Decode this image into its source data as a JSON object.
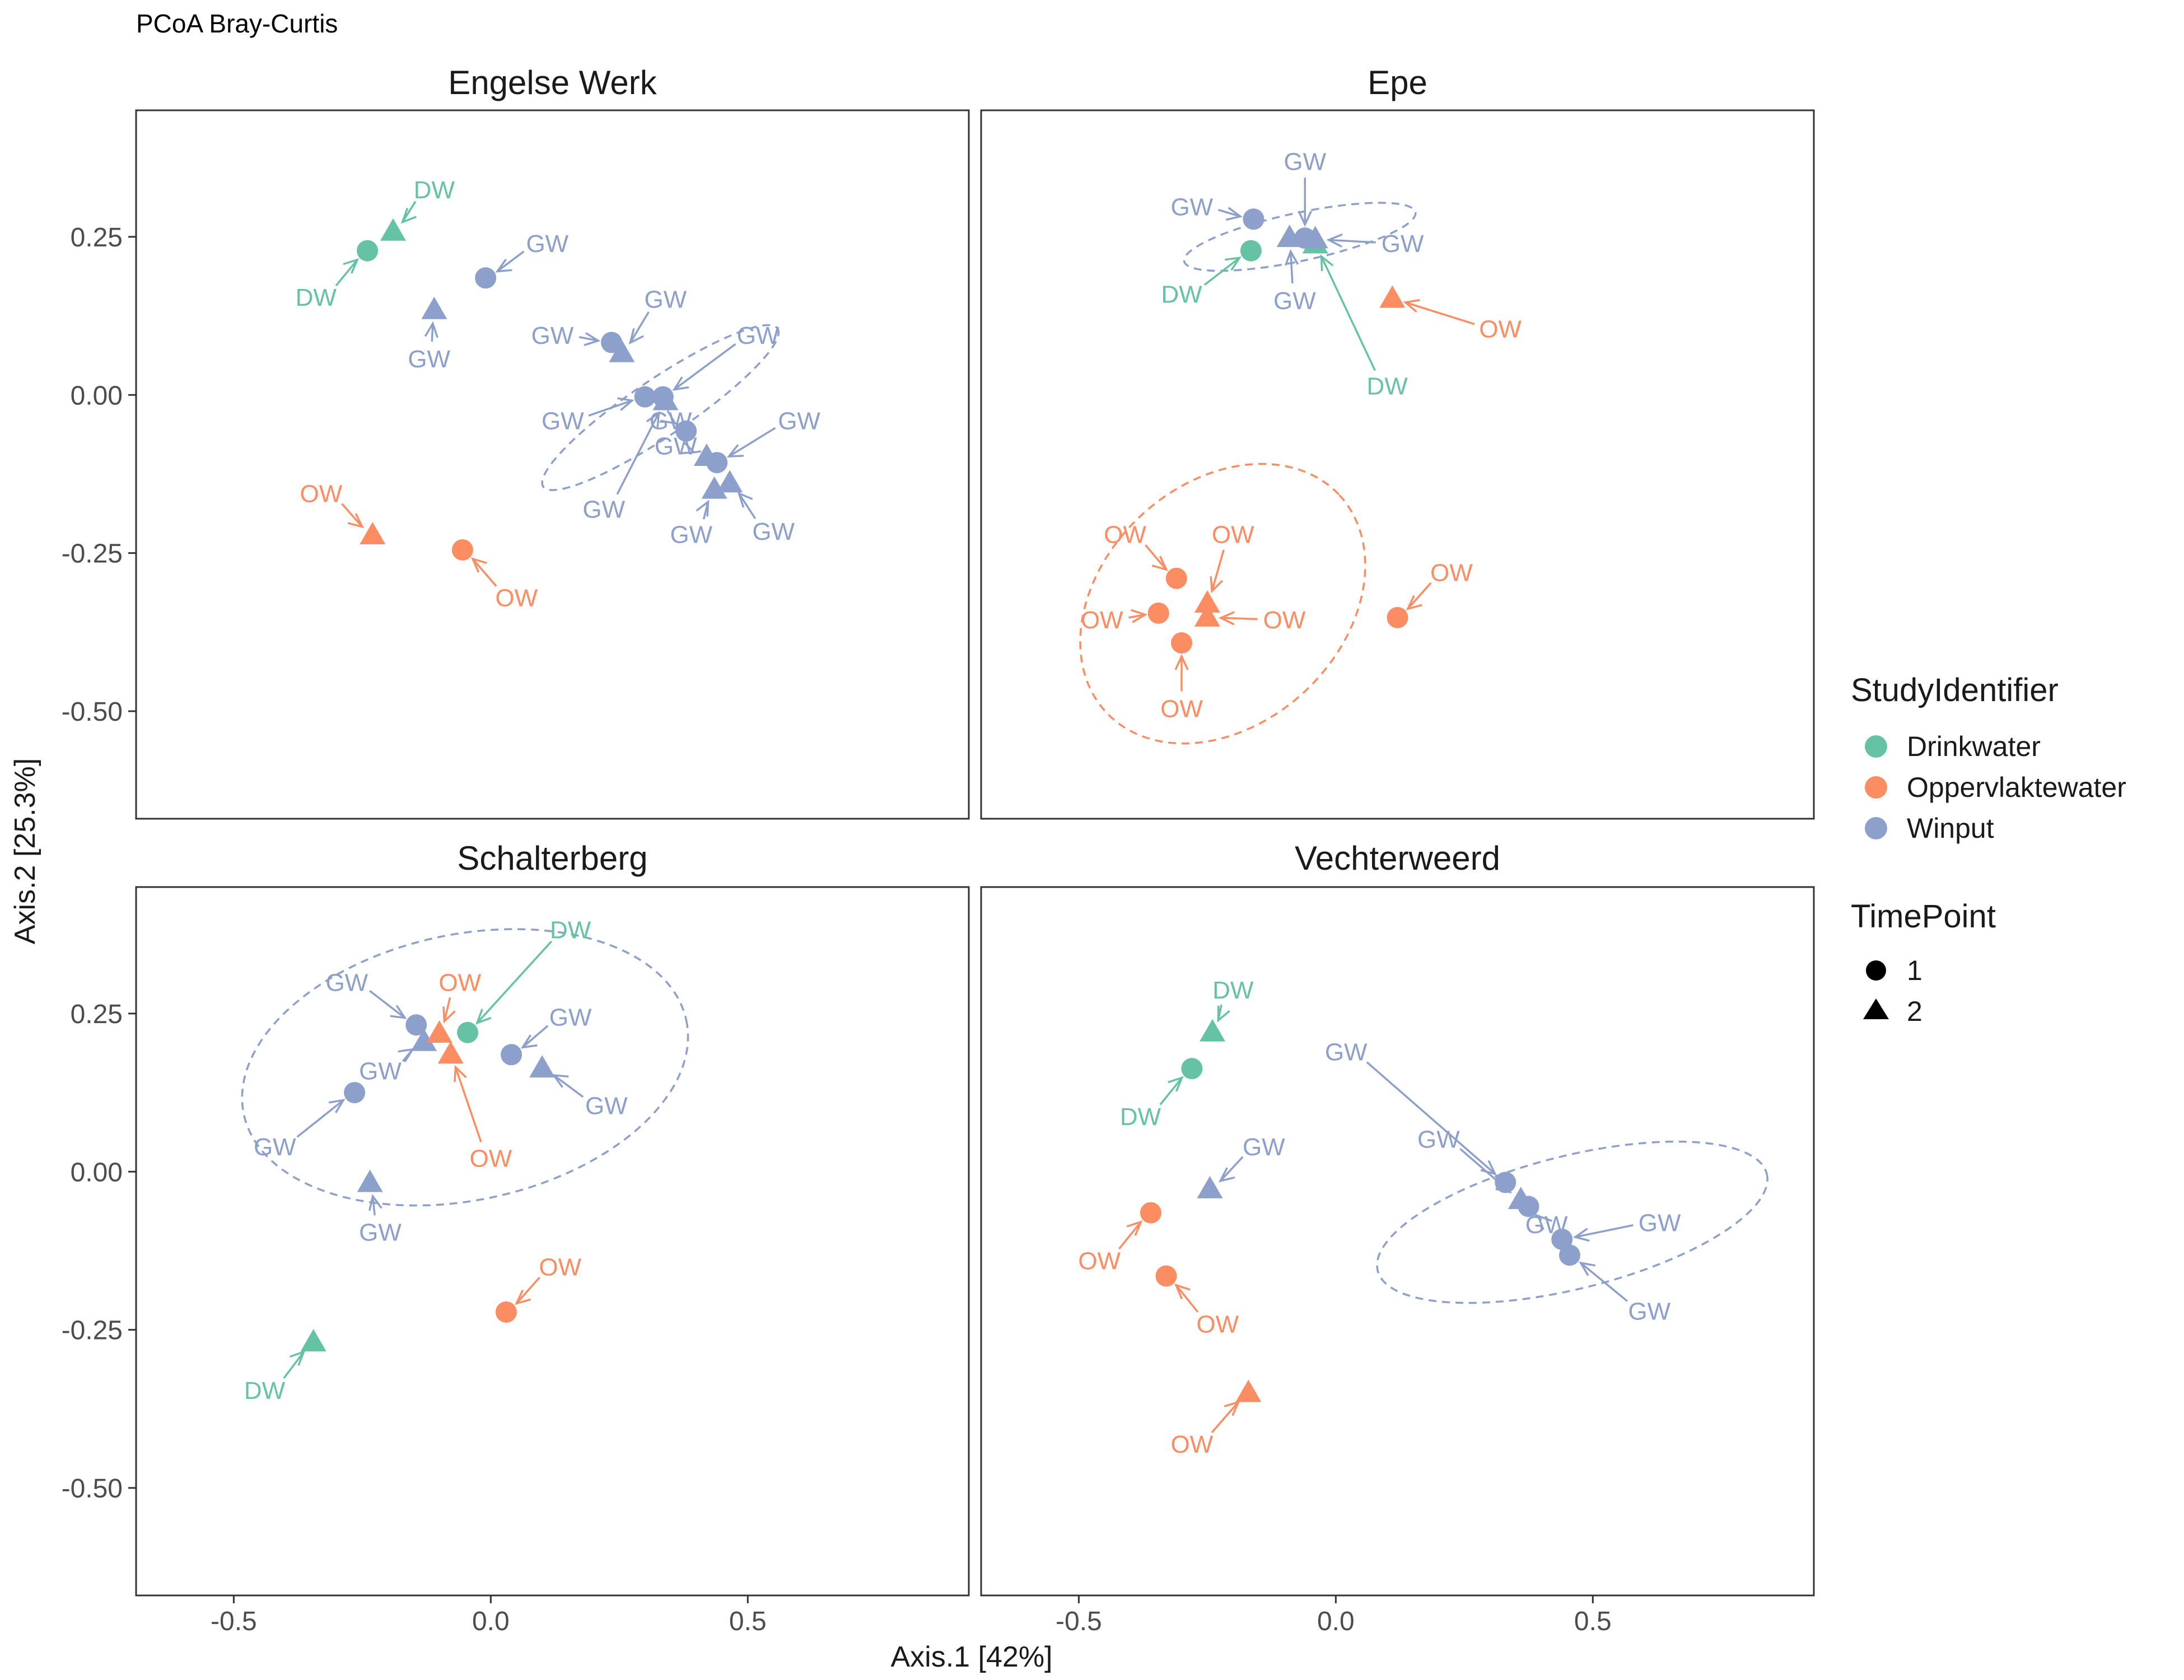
{
  "title": "PCoA Bray-Curtis",
  "chart_data": {
    "type": "scatter",
    "title": "PCoA Bray-Curtis",
    "xlabel": "Axis.1   [42%]",
    "ylabel": "Axis.2   [25.3%]",
    "xlim": [
      -0.69,
      0.93
    ],
    "ylim": [
      -0.67,
      0.45
    ],
    "xticks": [
      -0.5,
      0.0,
      0.5
    ],
    "xtick_labels": [
      "-0.5",
      "0.0",
      "0.5"
    ],
    "yticks": [
      0.25,
      0.0,
      -0.25,
      -0.5
    ],
    "ytick_labels": [
      "0.25",
      "0.00",
      "-0.25",
      "-0.50"
    ],
    "grid": false,
    "colors": {
      "Drinkwater": "#66c2a5",
      "Oppervlaktewater": "#fc8d62",
      "Winput": "#8da0cb"
    },
    "legend": {
      "placement": "right",
      "color_title": "StudyIdentifier",
      "color_items": [
        "Drinkwater",
        "Oppervlaktewater",
        "Winput"
      ],
      "shape_title": "TimePoint",
      "shape_items": [
        {
          "label": "1",
          "shape": "circle"
        },
        {
          "label": "2",
          "shape": "triangle"
        }
      ]
    },
    "panels": [
      {
        "name": "Engelse Werk",
        "points": [
          {
            "x": -0.24,
            "y": 0.228,
            "group": "Drinkwater",
            "time": "1",
            "label": "DW",
            "lx": -0.34,
            "ly": 0.155
          },
          {
            "x": -0.19,
            "y": 0.258,
            "group": "Drinkwater",
            "time": "2",
            "label": "DW",
            "lx": -0.11,
            "ly": 0.325
          },
          {
            "x": -0.11,
            "y": 0.134,
            "group": "Winput",
            "time": "2",
            "label": "GW",
            "lx": -0.12,
            "ly": 0.058
          },
          {
            "x": -0.01,
            "y": 0.185,
            "group": "Winput",
            "time": "1",
            "label": "GW",
            "lx": 0.11,
            "ly": 0.24
          },
          {
            "x": 0.235,
            "y": 0.083,
            "group": "Winput",
            "time": "1",
            "label": "GW",
            "lx": 0.12,
            "ly": 0.095
          },
          {
            "x": 0.255,
            "y": 0.066,
            "group": "Winput",
            "time": "2",
            "label": "GW",
            "lx": 0.34,
            "ly": 0.152
          },
          {
            "x": 0.3,
            "y": -0.003,
            "group": "Winput",
            "time": "1",
            "label": "GW",
            "lx": 0.14,
            "ly": -0.04
          },
          {
            "x": 0.335,
            "y": -0.003,
            "group": "Winput",
            "time": "1",
            "label": "GW",
            "lx": 0.52,
            "ly": 0.095
          },
          {
            "x": 0.34,
            "y": -0.01,
            "group": "Winput",
            "time": "2",
            "label": "GW",
            "lx": 0.22,
            "ly": -0.18
          },
          {
            "x": 0.38,
            "y": -0.057,
            "group": "Winput",
            "time": "1",
            "label": "GW",
            "lx": 0.35,
            "ly": -0.04
          },
          {
            "x": 0.42,
            "y": -0.098,
            "group": "Winput",
            "time": "2",
            "label": "GW",
            "lx": 0.36,
            "ly": -0.08
          },
          {
            "x": 0.44,
            "y": -0.107,
            "group": "Winput",
            "time": "1",
            "label": "GW",
            "lx": 0.6,
            "ly": -0.04
          },
          {
            "x": 0.465,
            "y": -0.14,
            "group": "Winput",
            "time": "2",
            "label": "GW",
            "lx": 0.55,
            "ly": -0.215
          },
          {
            "x": 0.435,
            "y": -0.15,
            "group": "Winput",
            "time": "2",
            "label": "GW",
            "lx": 0.39,
            "ly": -0.22
          },
          {
            "x": -0.23,
            "y": -0.222,
            "group": "Oppervlaktewater",
            "time": "2",
            "label": "OW",
            "lx": -0.33,
            "ly": -0.155
          },
          {
            "x": -0.055,
            "y": -0.245,
            "group": "Oppervlaktewater",
            "time": "1",
            "label": "OW",
            "lx": 0.05,
            "ly": -0.32
          }
        ],
        "ellipses": [
          {
            "group": "Winput",
            "cx": 0.33,
            "cy": -0.02,
            "rx": 0.275,
            "ry": 0.045,
            "angle": -34
          }
        ]
      },
      {
        "name": "Epe",
        "points": [
          {
            "x": -0.165,
            "y": 0.228,
            "group": "Drinkwater",
            "time": "1",
            "label": "DW",
            "lx": -0.3,
            "ly": 0.16
          },
          {
            "x": -0.04,
            "y": 0.238,
            "group": "Drinkwater",
            "time": "2",
            "label": "DW",
            "lx": 0.1,
            "ly": 0.015
          },
          {
            "x": -0.16,
            "y": 0.278,
            "group": "Winput",
            "time": "1",
            "label": "GW",
            "lx": -0.28,
            "ly": 0.298
          },
          {
            "x": -0.09,
            "y": 0.248,
            "group": "Winput",
            "time": "2",
            "label": "GW",
            "lx": -0.08,
            "ly": 0.15
          },
          {
            "x": -0.06,
            "y": 0.248,
            "group": "Winput",
            "time": "1",
            "label": "GW",
            "lx": -0.06,
            "ly": 0.37
          },
          {
            "x": -0.04,
            "y": 0.246,
            "group": "Winput",
            "time": "2",
            "label": "GW",
            "lx": 0.13,
            "ly": 0.24
          },
          {
            "x": 0.11,
            "y": 0.152,
            "group": "Oppervlaktewater",
            "time": "2",
            "label": "OW",
            "lx": 0.32,
            "ly": 0.105
          },
          {
            "x": -0.31,
            "y": -0.29,
            "group": "Oppervlaktewater",
            "time": "1",
            "label": "OW",
            "lx": -0.41,
            "ly": -0.22
          },
          {
            "x": -0.345,
            "y": -0.345,
            "group": "Oppervlaktewater",
            "time": "1",
            "label": "OW",
            "lx": -0.455,
            "ly": -0.355
          },
          {
            "x": -0.25,
            "y": -0.33,
            "group": "Oppervlaktewater",
            "time": "2",
            "label": "OW",
            "lx": -0.2,
            "ly": -0.22
          },
          {
            "x": -0.25,
            "y": -0.352,
            "group": "Oppervlaktewater",
            "time": "2",
            "label": "OW",
            "lx": -0.1,
            "ly": -0.355
          },
          {
            "x": -0.3,
            "y": -0.392,
            "group": "Oppervlaktewater",
            "time": "1",
            "label": "OW",
            "lx": -0.3,
            "ly": -0.495
          },
          {
            "x": 0.12,
            "y": -0.352,
            "group": "Oppervlaktewater",
            "time": "1",
            "label": "OW",
            "lx": 0.225,
            "ly": -0.28
          }
        ],
        "ellipses": [
          {
            "group": "Winput",
            "cx": -0.07,
            "cy": 0.25,
            "rx": 0.23,
            "ry": 0.038,
            "angle": -12
          },
          {
            "group": "Oppervlaktewater",
            "cx": -0.22,
            "cy": -0.33,
            "rx": 0.31,
            "ry": 0.19,
            "angle": -43
          }
        ]
      },
      {
        "name": "Schalterberg",
        "points": [
          {
            "x": -0.045,
            "y": 0.22,
            "group": "Drinkwater",
            "time": "1",
            "label": "DW",
            "lx": 0.155,
            "ly": 0.383
          },
          {
            "x": -0.345,
            "y": -0.27,
            "group": "Drinkwater",
            "time": "2",
            "label": "DW",
            "lx": -0.44,
            "ly": -0.345
          },
          {
            "x": -0.145,
            "y": 0.232,
            "group": "Winput",
            "time": "1",
            "label": "GW",
            "lx": -0.28,
            "ly": 0.3
          },
          {
            "x": -0.13,
            "y": 0.205,
            "group": "Winput",
            "time": "2",
            "label": "GW",
            "lx": -0.215,
            "ly": 0.16
          },
          {
            "x": -0.265,
            "y": 0.125,
            "group": "Winput",
            "time": "1",
            "label": "GW",
            "lx": -0.42,
            "ly": 0.04
          },
          {
            "x": 0.04,
            "y": 0.185,
            "group": "Winput",
            "time": "1",
            "label": "GW",
            "lx": 0.155,
            "ly": 0.245
          },
          {
            "x": 0.1,
            "y": 0.163,
            "group": "Winput",
            "time": "2",
            "label": "GW",
            "lx": 0.225,
            "ly": 0.105
          },
          {
            "x": -0.235,
            "y": -0.018,
            "group": "Winput",
            "time": "2",
            "label": "GW",
            "lx": -0.215,
            "ly": -0.095
          },
          {
            "x": -0.1,
            "y": 0.218,
            "group": "Oppervlaktewater",
            "time": "2",
            "label": "OW",
            "lx": -0.06,
            "ly": 0.3
          },
          {
            "x": -0.078,
            "y": 0.185,
            "group": "Oppervlaktewater",
            "time": "2",
            "label": "OW",
            "lx": 0.0,
            "ly": 0.022
          },
          {
            "x": 0.03,
            "y": -0.222,
            "group": "Oppervlaktewater",
            "time": "1",
            "label": "OW",
            "lx": 0.135,
            "ly": -0.15
          }
        ],
        "ellipses": [
          {
            "group": "Winput",
            "cx": -0.05,
            "cy": 0.165,
            "rx": 0.44,
            "ry": 0.21,
            "angle": -12
          }
        ]
      },
      {
        "name": "Vechterweerd",
        "points": [
          {
            "x": -0.28,
            "y": 0.163,
            "group": "Drinkwater",
            "time": "1",
            "label": "DW",
            "lx": -0.38,
            "ly": 0.088
          },
          {
            "x": -0.24,
            "y": 0.22,
            "group": "Drinkwater",
            "time": "2",
            "label": "DW",
            "lx": -0.2,
            "ly": 0.288
          },
          {
            "x": -0.245,
            "y": -0.028,
            "group": "Winput",
            "time": "2",
            "label": "GW",
            "lx": -0.14,
            "ly": 0.04
          },
          {
            "x": 0.33,
            "y": -0.017,
            "group": "Winput",
            "time": "1",
            "label": "GW",
            "lx": 0.02,
            "ly": 0.19
          },
          {
            "x": 0.36,
            "y": -0.045,
            "group": "Winput",
            "time": "2",
            "label": "GW",
            "lx": 0.2,
            "ly": 0.052
          },
          {
            "x": 0.375,
            "y": -0.055,
            "group": "Winput",
            "time": "1",
            "label": "GW",
            "lx": 0.41,
            "ly": -0.083
          },
          {
            "x": 0.44,
            "y": -0.107,
            "group": "Winput",
            "time": "1",
            "label": "GW",
            "lx": 0.63,
            "ly": -0.08
          },
          {
            "x": 0.455,
            "y": -0.132,
            "group": "Winput",
            "time": "1",
            "label": "GW",
            "lx": 0.61,
            "ly": -0.22
          },
          {
            "x": -0.36,
            "y": -0.065,
            "group": "Oppervlaktewater",
            "time": "1",
            "label": "OW",
            "lx": -0.46,
            "ly": -0.14
          },
          {
            "x": -0.33,
            "y": -0.165,
            "group": "Oppervlaktewater",
            "time": "1",
            "label": "OW",
            "lx": -0.23,
            "ly": -0.24
          },
          {
            "x": -0.17,
            "y": -0.35,
            "group": "Oppervlaktewater",
            "time": "2",
            "label": "OW",
            "lx": -0.28,
            "ly": -0.43
          }
        ],
        "ellipses": [
          {
            "group": "Winput",
            "cx": 0.46,
            "cy": -0.08,
            "rx": 0.39,
            "ry": 0.105,
            "angle": -14
          }
        ]
      }
    ]
  }
}
